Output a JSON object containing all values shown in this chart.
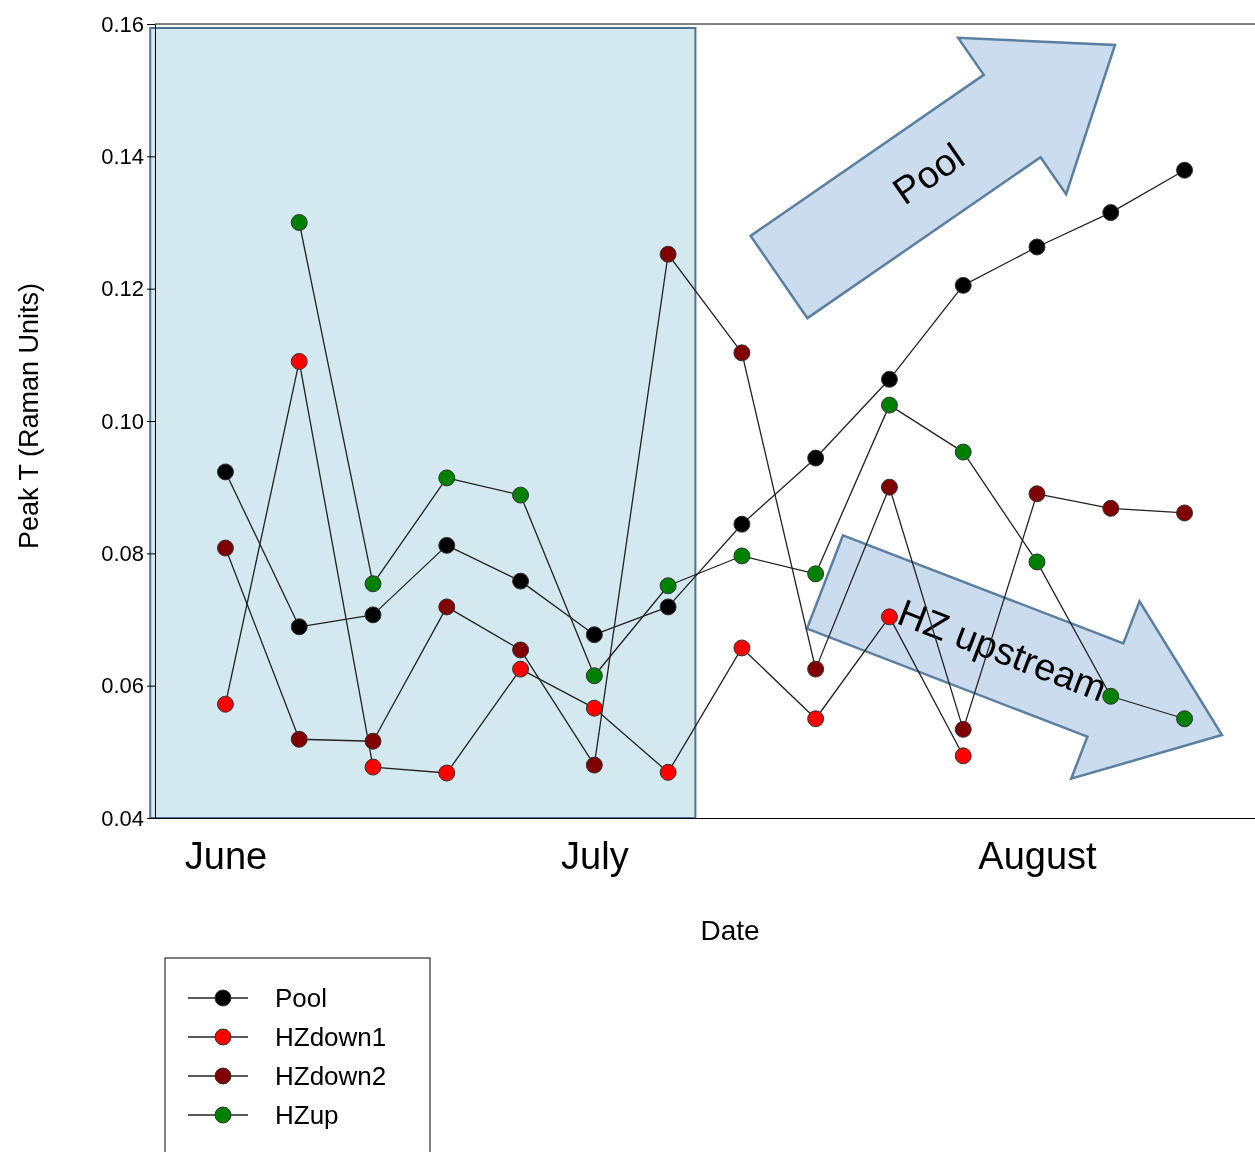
{
  "chart_data": {
    "type": "line",
    "xlabel": "Date",
    "ylabel": "Peak T (Raman Units)",
    "categories": [
      "June",
      null,
      null,
      null,
      null,
      "July",
      null,
      null,
      null,
      null,
      null,
      "August",
      null,
      null
    ],
    "ylim": [
      0.04,
      0.16
    ],
    "yticks": [
      {
        "value": 0.04,
        "label": "0.04"
      },
      {
        "value": 0.06,
        "label": "0.06"
      },
      {
        "value": 0.08,
        "label": "0.08"
      },
      {
        "value": 0.1,
        "label": "0.10"
      },
      {
        "value": 0.12,
        "label": "0.12"
      },
      {
        "value": 0.14,
        "label": "0.14"
      },
      {
        "value": 0.16,
        "label": "0.16"
      }
    ],
    "series": [
      {
        "name": "Pool",
        "color": "#000000",
        "values": [
          0.0923,
          0.0689,
          0.0707,
          0.0812,
          0.0758,
          0.0677,
          0.0719,
          0.0844,
          0.0944,
          0.1063,
          0.1205,
          0.1263,
          0.1315,
          0.1379
        ]
      },
      {
        "name": "HZdown1",
        "color": "#ff0000",
        "values": [
          0.0572,
          0.109,
          0.0477,
          0.0468,
          0.0625,
          0.0566,
          0.0469,
          0.0657,
          0.055,
          0.0704,
          0.0494,
          null,
          null,
          null
        ]
      },
      {
        "name": "HZdown2",
        "color": "#800000",
        "values": [
          0.0808,
          0.0519,
          0.0516,
          0.0719,
          0.0654,
          0.048,
          0.1252,
          0.1103,
          0.0625,
          0.09,
          0.0534,
          0.089,
          0.0868,
          0.0861
        ]
      },
      {
        "name": "HZup",
        "color": "#008000",
        "values": [
          null,
          0.13,
          0.0754,
          0.0914,
          0.0888,
          0.0615,
          0.0751,
          0.0796,
          0.0769,
          0.1024,
          0.0953,
          0.0787,
          0.0584,
          0.055
        ]
      }
    ],
    "annotations": [
      "Pool",
      "HZ upstream"
    ],
    "grid": false,
    "legend": "bottom left",
    "marker": "circle",
    "line_style": "solid"
  }
}
